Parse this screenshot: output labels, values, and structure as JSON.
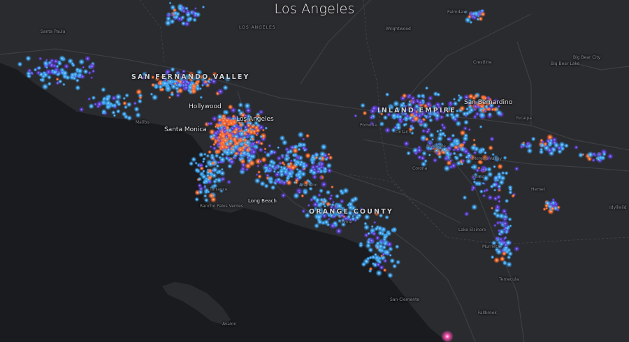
{
  "map": {
    "title": "Los Angeles",
    "accent_colors": {
      "background": "#1e1f22",
      "ocean": "#1a1b1e",
      "land": "#2a2b2e",
      "road": "#3d3f44",
      "point_low": "#3aa2f0",
      "point_mid": "#5b3cd6",
      "point_high": "#ff6a2a",
      "point_peak": "#ff4fb0"
    },
    "labels": {
      "region_sfv": "SAN FERNANDO VALLEY",
      "region_ie": "INLAND EMPIRE",
      "region_oc": "ORANGE COUNTY",
      "los_angeles_small": "LOS ANGELES",
      "hollywood": "Hollywood",
      "santa_monica": "Santa Monica",
      "los_angeles_city": "Los Angeles",
      "long_beach": "Long Beach",
      "san_bernardino": "San Bernardino",
      "big_bear_city": "Big Bear City",
      "big_bear_lake": "Big Bear Lake",
      "crestline": "Crestline",
      "wrightwood": "Wrightwood",
      "avalon": "Avalon",
      "palmdale": "Palmdale",
      "santa_paula": "Santa Paula",
      "malibu": "Malibu",
      "yucaipa": "Yucaipa",
      "lake_elsinore": "Lake Elsinore",
      "temecula": "Temecula",
      "fallbrook": "Fallbrook",
      "san_clemente": "San Clemente",
      "irvine": "Irvine",
      "anaheim": "Anaheim",
      "pomona": "Pomona",
      "ontario": "Ontario",
      "riverside": "Riverside",
      "corona": "Corona",
      "palos_verdes": "Rancho Palos Verdes",
      "torrance": "Torrance",
      "murrieta": "Murrieta",
      "hemet": "Hemet",
      "perris": "Perris",
      "moreno_valley": "Moreno Valley",
      "idyllwild": "Idyllwild"
    }
  }
}
